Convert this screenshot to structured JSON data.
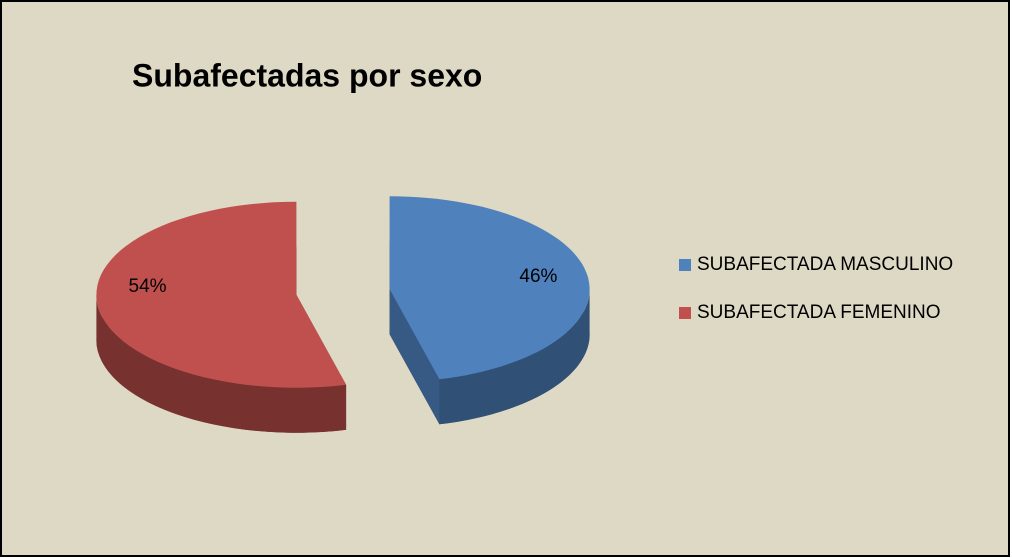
{
  "chart_data": {
    "type": "pie",
    "title": "Subafectadas por sexo",
    "categories": [
      "SUBAFECTADA MASCULINO",
      "SUBAFECTADA FEMENINO"
    ],
    "values": [
      46,
      54
    ],
    "value_labels": [
      "46%",
      "54%"
    ],
    "colors": [
      "#4f81bd",
      "#c0504d"
    ],
    "legend": "right"
  }
}
